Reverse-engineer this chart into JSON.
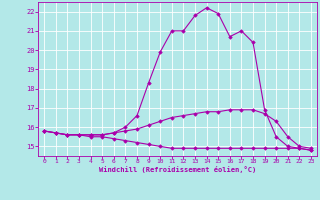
{
  "xlabel": "Windchill (Refroidissement éolien,°C)",
  "ylabel": "",
  "background_color": "#b3e8e8",
  "grid_color": "#ffffff",
  "line_color": "#aa00aa",
  "xlim": [
    -0.5,
    23.5
  ],
  "ylim": [
    14.5,
    22.5
  ],
  "xticks": [
    0,
    1,
    2,
    3,
    4,
    5,
    6,
    7,
    8,
    9,
    10,
    11,
    12,
    13,
    14,
    15,
    16,
    17,
    18,
    19,
    20,
    21,
    22,
    23
  ],
  "yticks": [
    15,
    16,
    17,
    18,
    19,
    20,
    21,
    22
  ],
  "line1_x": [
    0,
    1,
    2,
    3,
    4,
    5,
    6,
    7,
    8,
    9,
    10,
    11,
    12,
    13,
    14,
    15,
    16,
    17,
    18,
    19,
    20,
    21,
    22,
    23
  ],
  "line1_y": [
    15.8,
    15.7,
    15.6,
    15.6,
    15.6,
    15.6,
    15.7,
    16.0,
    16.6,
    18.3,
    19.9,
    21.0,
    21.0,
    21.8,
    22.2,
    21.9,
    20.7,
    21.0,
    20.4,
    16.9,
    15.5,
    15.0,
    14.9,
    14.8
  ],
  "line2_x": [
    0,
    1,
    2,
    3,
    4,
    5,
    6,
    7,
    8,
    9,
    10,
    11,
    12,
    13,
    14,
    15,
    16,
    17,
    18,
    19,
    20,
    21,
    22,
    23
  ],
  "line2_y": [
    15.8,
    15.7,
    15.6,
    15.6,
    15.6,
    15.6,
    15.7,
    15.8,
    15.9,
    16.1,
    16.3,
    16.5,
    16.6,
    16.7,
    16.8,
    16.8,
    16.9,
    16.9,
    16.9,
    16.7,
    16.3,
    15.5,
    15.0,
    14.9
  ],
  "line3_x": [
    0,
    1,
    2,
    3,
    4,
    5,
    6,
    7,
    8,
    9,
    10,
    11,
    12,
    13,
    14,
    15,
    16,
    17,
    18,
    19,
    20,
    21,
    22,
    23
  ],
  "line3_y": [
    15.8,
    15.7,
    15.6,
    15.6,
    15.5,
    15.5,
    15.4,
    15.3,
    15.2,
    15.1,
    15.0,
    14.9,
    14.9,
    14.9,
    14.9,
    14.9,
    14.9,
    14.9,
    14.9,
    14.9,
    14.9,
    14.9,
    14.9,
    14.8
  ]
}
